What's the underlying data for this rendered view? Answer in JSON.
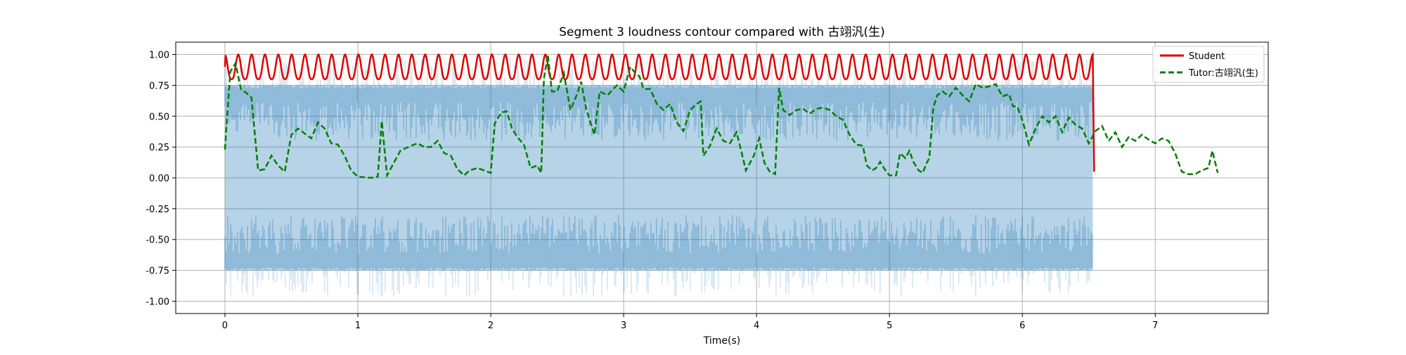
{
  "chart_data": {
    "type": "line",
    "title": "Segment 3 loudness contour compared with 古翊汎(生)",
    "xlabel": "Time(s)",
    "ylabel": "",
    "xlim": [
      -0.37,
      7.85
    ],
    "ylim": [
      -1.1,
      1.1
    ],
    "x_ticks": [
      0,
      1,
      2,
      3,
      4,
      5,
      6,
      7
    ],
    "x_tick_labels": [
      "0",
      "1",
      "2",
      "3",
      "4",
      "5",
      "6",
      "7"
    ],
    "y_ticks": [
      1.0,
      0.75,
      0.5,
      0.25,
      0.0,
      -0.25,
      -0.5,
      -0.75,
      -1.0
    ],
    "y_tick_labels": [
      "1.00",
      "0.75",
      "0.50",
      "0.25",
      "0.00",
      "-0.25",
      "-0.50",
      "-0.75",
      "-1.00"
    ],
    "grid": true,
    "legend_position": "top-right",
    "waveform": {
      "x_start": 0.0,
      "x_end": 6.53,
      "outer_amplitude": 0.97,
      "inner_amplitude": 0.75,
      "quiet_amplitude": 0.3,
      "color": "#1f77b4"
    },
    "series": [
      {
        "name": "Student",
        "color": "#e00000",
        "style": "solid",
        "x_start": 0.0,
        "x_end": 6.53,
        "peak_count": 65,
        "peak": 1.0,
        "trough": 0.8,
        "end_value": 0.05
      },
      {
        "name": "Tutor:古翊汎(生)",
        "color": "#008000",
        "style": "dashed",
        "points": [
          [
            0.0,
            0.23
          ],
          [
            0.04,
            0.86
          ],
          [
            0.08,
            0.93
          ],
          [
            0.12,
            0.72
          ],
          [
            0.16,
            0.69
          ],
          [
            0.2,
            0.65
          ],
          [
            0.25,
            0.06
          ],
          [
            0.3,
            0.07
          ],
          [
            0.35,
            0.18
          ],
          [
            0.4,
            0.1
          ],
          [
            0.45,
            0.05
          ],
          [
            0.5,
            0.35
          ],
          [
            0.55,
            0.4
          ],
          [
            0.6,
            0.36
          ],
          [
            0.65,
            0.32
          ],
          [
            0.7,
            0.45
          ],
          [
            0.75,
            0.4
          ],
          [
            0.8,
            0.28
          ],
          [
            0.85,
            0.27
          ],
          [
            0.9,
            0.18
          ],
          [
            0.95,
            0.06
          ],
          [
            1.0,
            0.01
          ],
          [
            1.1,
            0.0
          ],
          [
            1.15,
            0.01
          ],
          [
            1.18,
            0.46
          ],
          [
            1.22,
            0.02
          ],
          [
            1.26,
            0.1
          ],
          [
            1.32,
            0.22
          ],
          [
            1.4,
            0.26
          ],
          [
            1.45,
            0.28
          ],
          [
            1.5,
            0.25
          ],
          [
            1.55,
            0.25
          ],
          [
            1.6,
            0.3
          ],
          [
            1.65,
            0.2
          ],
          [
            1.7,
            0.18
          ],
          [
            1.75,
            0.07
          ],
          [
            1.8,
            0.02
          ],
          [
            1.84,
            0.06
          ],
          [
            1.9,
            0.08
          ],
          [
            1.95,
            0.06
          ],
          [
            2.0,
            0.04
          ],
          [
            2.03,
            0.44
          ],
          [
            2.08,
            0.53
          ],
          [
            2.12,
            0.54
          ],
          [
            2.16,
            0.4
          ],
          [
            2.2,
            0.33
          ],
          [
            2.25,
            0.27
          ],
          [
            2.3,
            0.08
          ],
          [
            2.35,
            0.1
          ],
          [
            2.38,
            0.04
          ],
          [
            2.4,
            0.8
          ],
          [
            2.43,
            1.0
          ],
          [
            2.46,
            0.7
          ],
          [
            2.5,
            0.7
          ],
          [
            2.55,
            0.85
          ],
          [
            2.6,
            0.55
          ],
          [
            2.65,
            0.68
          ],
          [
            2.68,
            0.78
          ],
          [
            2.72,
            0.55
          ],
          [
            2.78,
            0.35
          ],
          [
            2.82,
            0.7
          ],
          [
            2.88,
            0.67
          ],
          [
            2.92,
            0.72
          ],
          [
            2.95,
            0.75
          ],
          [
            3.0,
            0.7
          ],
          [
            3.05,
            0.9
          ],
          [
            3.08,
            0.86
          ],
          [
            3.12,
            0.82
          ],
          [
            3.15,
            0.72
          ],
          [
            3.2,
            0.72
          ],
          [
            3.25,
            0.6
          ],
          [
            3.3,
            0.55
          ],
          [
            3.35,
            0.6
          ],
          [
            3.4,
            0.45
          ],
          [
            3.45,
            0.38
          ],
          [
            3.5,
            0.55
          ],
          [
            3.55,
            0.6
          ],
          [
            3.58,
            0.62
          ],
          [
            3.6,
            0.18
          ],
          [
            3.65,
            0.26
          ],
          [
            3.7,
            0.4
          ],
          [
            3.75,
            0.3
          ],
          [
            3.8,
            0.28
          ],
          [
            3.85,
            0.37
          ],
          [
            3.9,
            0.15
          ],
          [
            3.92,
            0.06
          ],
          [
            3.98,
            0.18
          ],
          [
            4.02,
            0.32
          ],
          [
            4.06,
            0.12
          ],
          [
            4.1,
            0.05
          ],
          [
            4.14,
            0.03
          ],
          [
            4.17,
            0.73
          ],
          [
            4.2,
            0.55
          ],
          [
            4.25,
            0.51
          ],
          [
            4.3,
            0.55
          ],
          [
            4.35,
            0.56
          ],
          [
            4.4,
            0.52
          ],
          [
            4.45,
            0.56
          ],
          [
            4.5,
            0.57
          ],
          [
            4.55,
            0.55
          ],
          [
            4.6,
            0.5
          ],
          [
            4.65,
            0.47
          ],
          [
            4.7,
            0.35
          ],
          [
            4.75,
            0.27
          ],
          [
            4.8,
            0.26
          ],
          [
            4.83,
            0.1
          ],
          [
            4.87,
            0.06
          ],
          [
            4.9,
            0.08
          ],
          [
            4.93,
            0.13
          ],
          [
            4.97,
            0.06
          ],
          [
            5.0,
            0.02
          ],
          [
            5.05,
            0.02
          ],
          [
            5.08,
            0.2
          ],
          [
            5.12,
            0.16
          ],
          [
            5.15,
            0.22
          ],
          [
            5.18,
            0.13
          ],
          [
            5.22,
            0.06
          ],
          [
            5.25,
            0.04
          ],
          [
            5.28,
            0.12
          ],
          [
            5.3,
            0.16
          ],
          [
            5.33,
            0.57
          ],
          [
            5.36,
            0.67
          ],
          [
            5.4,
            0.7
          ],
          [
            5.45,
            0.66
          ],
          [
            5.5,
            0.73
          ],
          [
            5.55,
            0.67
          ],
          [
            5.6,
            0.62
          ],
          [
            5.65,
            0.76
          ],
          [
            5.7,
            0.73
          ],
          [
            5.75,
            0.74
          ],
          [
            5.8,
            0.76
          ],
          [
            5.85,
            0.66
          ],
          [
            5.9,
            0.68
          ],
          [
            5.93,
            0.58
          ],
          [
            5.96,
            0.58
          ],
          [
            6.0,
            0.47
          ],
          [
            6.05,
            0.27
          ],
          [
            6.1,
            0.4
          ],
          [
            6.15,
            0.5
          ],
          [
            6.2,
            0.45
          ],
          [
            6.25,
            0.5
          ],
          [
            6.3,
            0.37
          ],
          [
            6.35,
            0.49
          ],
          [
            6.4,
            0.43
          ],
          [
            6.45,
            0.4
          ],
          [
            6.5,
            0.28
          ],
          [
            6.55,
            0.38
          ],
          [
            6.6,
            0.42
          ],
          [
            6.65,
            0.3
          ],
          [
            6.7,
            0.37
          ],
          [
            6.75,
            0.25
          ],
          [
            6.8,
            0.33
          ],
          [
            6.85,
            0.3
          ],
          [
            6.9,
            0.35
          ],
          [
            6.95,
            0.31
          ],
          [
            7.0,
            0.28
          ],
          [
            7.05,
            0.32
          ],
          [
            7.1,
            0.3
          ],
          [
            7.15,
            0.2
          ],
          [
            7.2,
            0.05
          ],
          [
            7.25,
            0.03
          ],
          [
            7.3,
            0.03
          ],
          [
            7.35,
            0.06
          ],
          [
            7.4,
            0.08
          ],
          [
            7.43,
            0.22
          ],
          [
            7.47,
            0.04
          ]
        ]
      }
    ]
  }
}
